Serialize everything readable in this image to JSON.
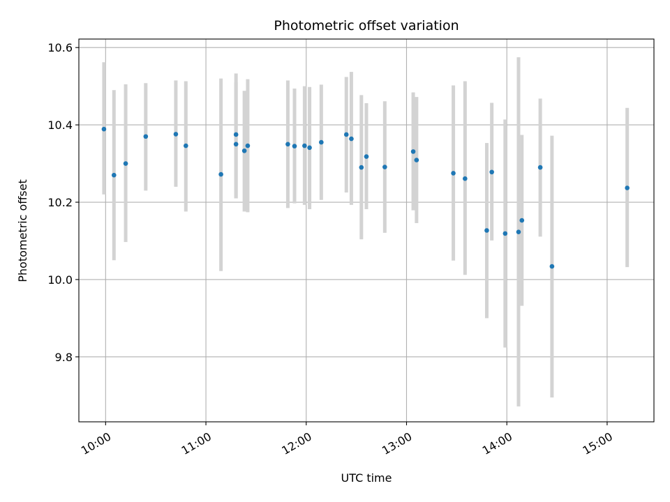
{
  "chart_data": {
    "type": "scatter",
    "title": "Photometric offset variation",
    "xlabel": "UTC time",
    "ylabel": "Photometric offset",
    "x_is_time": true,
    "xlim": [
      "09:44",
      "15:28"
    ],
    "ylim": [
      9.632,
      10.622
    ],
    "xticks": [
      "10:00",
      "11:00",
      "12:00",
      "13:00",
      "14:00",
      "15:00"
    ],
    "yticks": [
      9.8,
      10.0,
      10.2,
      10.4,
      10.6
    ],
    "ytick_labels": [
      "9.8",
      "10.0",
      "10.2",
      "10.4",
      "10.6"
    ],
    "grid": true,
    "point_color": "#1f77b4",
    "errorbar_color": "#d3d3d3",
    "points": [
      {
        "t": "09:59",
        "y": 10.389,
        "lo": 10.22,
        "hi": 10.562
      },
      {
        "t": "10:05",
        "y": 10.27,
        "lo": 10.05,
        "hi": 10.49
      },
      {
        "t": "10:12",
        "y": 10.3,
        "lo": 10.097,
        "hi": 10.505
      },
      {
        "t": "10:24",
        "y": 10.37,
        "lo": 10.23,
        "hi": 10.508
      },
      {
        "t": "10:42",
        "y": 10.376,
        "lo": 10.24,
        "hi": 10.515
      },
      {
        "t": "10:48",
        "y": 10.346,
        "lo": 10.176,
        "hi": 10.513
      },
      {
        "t": "11:09",
        "y": 10.272,
        "lo": 10.022,
        "hi": 10.52
      },
      {
        "t": "11:18",
        "y": 10.375,
        "lo": 10.21,
        "hi": 10.533
      },
      {
        "t": "11:18",
        "y": 10.35,
        "lo": 10.21,
        "hi": 10.51
      },
      {
        "t": "11:23",
        "y": 10.333,
        "lo": 10.176,
        "hi": 10.488
      },
      {
        "t": "11:25",
        "y": 10.346,
        "lo": 10.174,
        "hi": 10.518
      },
      {
        "t": "11:49",
        "y": 10.35,
        "lo": 10.185,
        "hi": 10.515
      },
      {
        "t": "11:53",
        "y": 10.345,
        "lo": 10.197,
        "hi": 10.494
      },
      {
        "t": "11:59",
        "y": 10.346,
        "lo": 10.193,
        "hi": 10.5
      },
      {
        "t": "12:02",
        "y": 10.341,
        "lo": 10.182,
        "hi": 10.498
      },
      {
        "t": "12:09",
        "y": 10.355,
        "lo": 10.206,
        "hi": 10.504
      },
      {
        "t": "12:24",
        "y": 10.375,
        "lo": 10.225,
        "hi": 10.524
      },
      {
        "t": "12:27",
        "y": 10.364,
        "lo": 10.193,
        "hi": 10.537
      },
      {
        "t": "12:33",
        "y": 10.29,
        "lo": 10.104,
        "hi": 10.477
      },
      {
        "t": "12:36",
        "y": 10.318,
        "lo": 10.182,
        "hi": 10.456
      },
      {
        "t": "12:47",
        "y": 10.291,
        "lo": 10.121,
        "hi": 10.461
      },
      {
        "t": "13:04",
        "y": 10.331,
        "lo": 10.179,
        "hi": 10.484
      },
      {
        "t": "13:06",
        "y": 10.309,
        "lo": 10.146,
        "hi": 10.472
      },
      {
        "t": "13:28",
        "y": 10.275,
        "lo": 10.049,
        "hi": 10.502
      },
      {
        "t": "13:35",
        "y": 10.261,
        "lo": 10.012,
        "hi": 10.513
      },
      {
        "t": "13:48",
        "y": 10.127,
        "lo": 9.9,
        "hi": 10.353
      },
      {
        "t": "13:51",
        "y": 10.278,
        "lo": 10.101,
        "hi": 10.457
      },
      {
        "t": "13:59",
        "y": 10.119,
        "lo": 9.824,
        "hi": 10.414
      },
      {
        "t": "14:07",
        "y": 10.123,
        "lo": 9.672,
        "hi": 10.575
      },
      {
        "t": "14:09",
        "y": 10.153,
        "lo": 9.932,
        "hi": 10.374
      },
      {
        "t": "14:20",
        "y": 10.29,
        "lo": 10.111,
        "hi": 10.468
      },
      {
        "t": "14:27",
        "y": 10.034,
        "lo": 9.695,
        "hi": 10.372
      },
      {
        "t": "15:12",
        "y": 10.237,
        "lo": 10.032,
        "hi": 10.444
      }
    ]
  }
}
